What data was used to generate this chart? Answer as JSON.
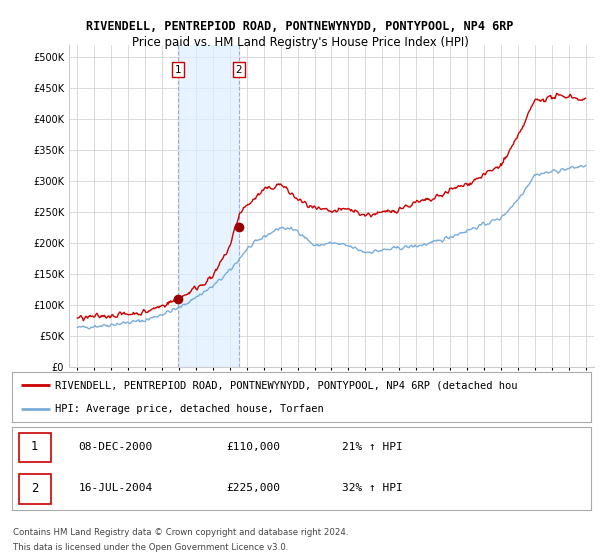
{
  "title": "RIVENDELL, PENTREPIOD ROAD, PONTNEWYNYDD, PONTYPOOL, NP4 6RP",
  "subtitle": "Price paid vs. HM Land Registry's House Price Index (HPI)",
  "ytick_values": [
    0,
    50000,
    100000,
    150000,
    200000,
    250000,
    300000,
    350000,
    400000,
    450000,
    500000
  ],
  "ylim": [
    0,
    520000
  ],
  "sale1": {
    "date_label": "08-DEC-2000",
    "price": 110000,
    "pct": "21% ↑ HPI",
    "marker_num": 1,
    "year": 2000.92
  },
  "sale2": {
    "date_label": "16-JUL-2004",
    "price": 225000,
    "pct": "32% ↑ HPI",
    "marker_num": 2,
    "year": 2004.54
  },
  "red_line_color": "#cc0000",
  "blue_line_color": "#7aaddb",
  "sale_dot_color": "#990000",
  "background_color": "#ffffff",
  "grid_color": "#cccccc",
  "span_color": "#ddeeff",
  "legend_label_red": "RIVENDELL, PENTREPIOD ROAD, PONTNEWYNYDD, PONTYPOOL, NP4 6RP (detached hou",
  "legend_label_blue": "HPI: Average price, detached house, Torfaen",
  "footer1": "Contains HM Land Registry data © Crown copyright and database right 2024.",
  "footer2": "This data is licensed under the Open Government Licence v3.0.",
  "title_fontsize": 8.5,
  "subtitle_fontsize": 8.5,
  "tick_fontsize": 7,
  "legend_fontsize": 7.5,
  "table_fontsize": 8
}
